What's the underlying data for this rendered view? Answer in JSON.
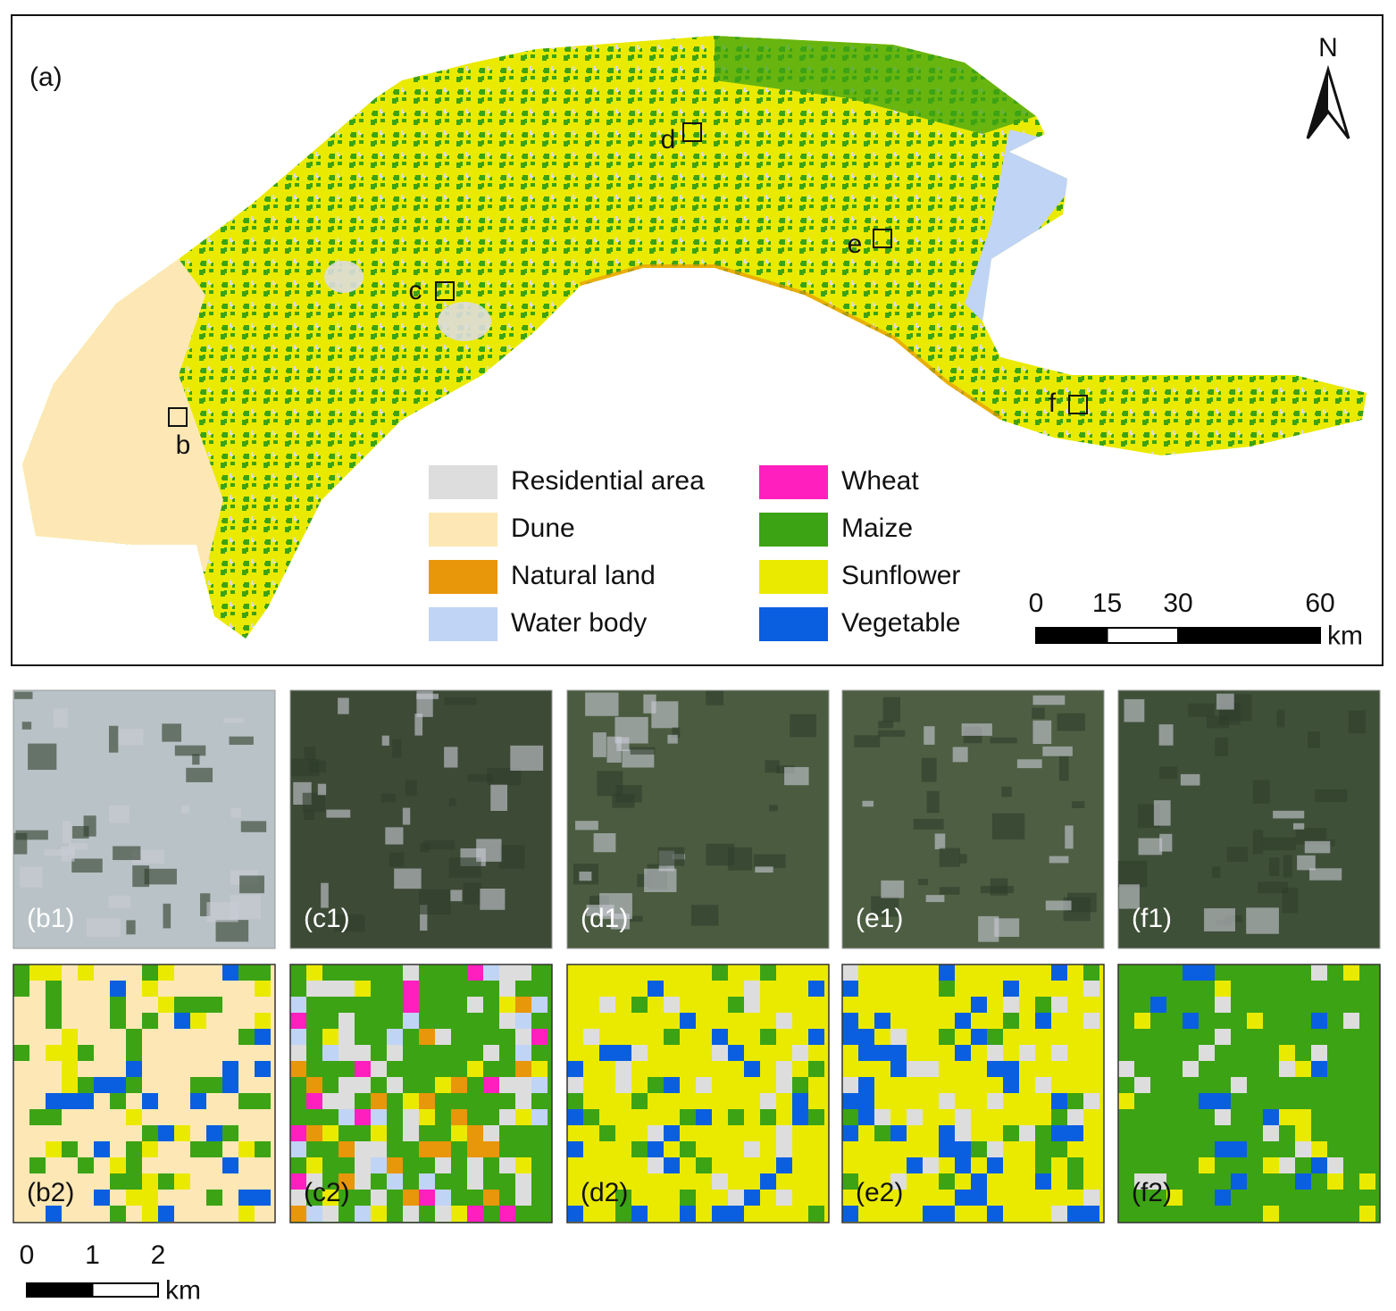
{
  "panel_a": {
    "label": "(a)",
    "north": "N",
    "sites": [
      "b",
      "c",
      "d",
      "e",
      "f"
    ],
    "legend": [
      {
        "name": "Residential area",
        "color": "#dddddd"
      },
      {
        "name": "Dune",
        "color": "#fde8b5"
      },
      {
        "name": "Natural land",
        "color": "#e8960a"
      },
      {
        "name": "Water body",
        "color": "#c0d4f6"
      },
      {
        "name": "Wheat",
        "color": "#ff1fbf"
      },
      {
        "name": "Maize",
        "color": "#3ca314"
      },
      {
        "name": "Sunflower",
        "color": "#eaea00"
      },
      {
        "name": "Vegetable",
        "color": "#0a5fe0"
      }
    ],
    "scale_bar": {
      "ticks": [
        0,
        15,
        30,
        60
      ],
      "unit": "km"
    }
  },
  "panels": [
    {
      "top": "(b1)",
      "bottom": "(b2)"
    },
    {
      "top": "(c1)",
      "bottom": "(c2)"
    },
    {
      "top": "(d1)",
      "bottom": "(d2)"
    },
    {
      "top": "(e1)",
      "bottom": "(e2)"
    },
    {
      "top": "(f1)",
      "bottom": "(f2)"
    }
  ],
  "scale_bar": {
    "ticks": [
      0,
      1,
      2
    ],
    "unit": "km"
  }
}
